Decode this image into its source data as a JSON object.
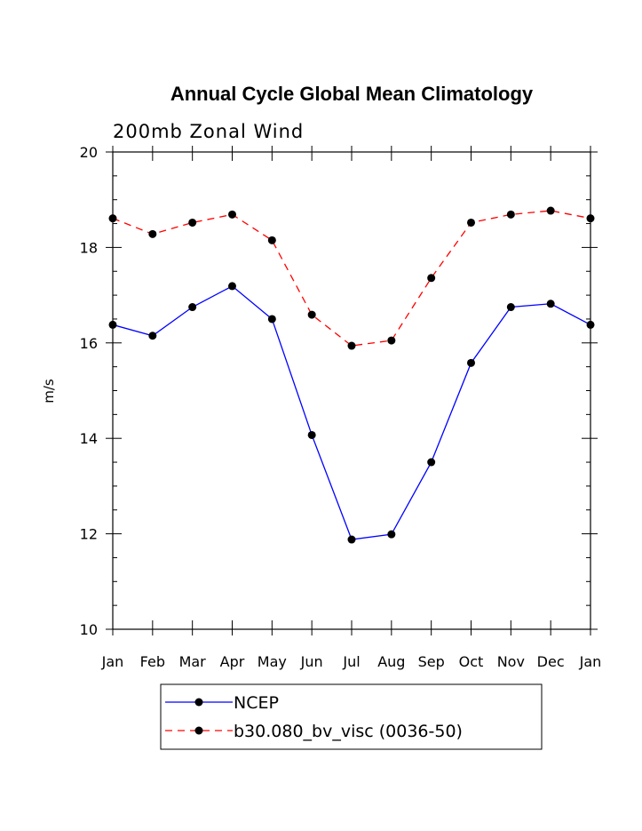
{
  "chart_data": {
    "type": "line",
    "title": "Annual Cycle Global Mean Climatology",
    "subtitle": "200mb Zonal Wind",
    "xlabel": "",
    "ylabel": "m/s",
    "categories": [
      "Jan",
      "Feb",
      "Mar",
      "Apr",
      "May",
      "Jun",
      "Jul",
      "Aug",
      "Sep",
      "Oct",
      "Nov",
      "Dec",
      "Jan"
    ],
    "ylim": [
      10,
      20
    ],
    "yticks": [
      "10",
      "12",
      "14",
      "16",
      "18",
      "20"
    ],
    "grid": false,
    "legend_position": "bottom",
    "series": [
      {
        "name": "NCEP",
        "color": "#0000ff",
        "style": "solid",
        "values": [
          16.38,
          16.15,
          16.75,
          17.19,
          16.5,
          14.07,
          11.88,
          11.99,
          13.5,
          15.58,
          16.75,
          16.82,
          16.38
        ]
      },
      {
        "name": "b30.080_bv_visc (0036-50)",
        "color": "#ff0000",
        "style": "dashed",
        "values": [
          18.61,
          18.28,
          18.52,
          18.69,
          18.15,
          16.59,
          15.94,
          16.05,
          17.36,
          18.52,
          18.69,
          18.77,
          18.61
        ]
      }
    ]
  }
}
